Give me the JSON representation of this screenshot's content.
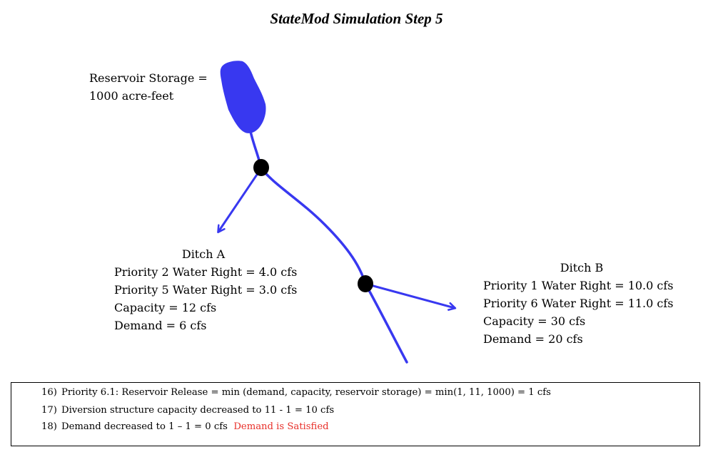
{
  "title": "StateMod Simulation Step 5",
  "colors": {
    "river": "#3838f0",
    "node": "#000000",
    "satisfied": "#e8302a"
  },
  "reservoir": {
    "lines": [
      "Reservoir Storage =",
      "1000 acre-feet"
    ]
  },
  "ditch_a": {
    "name": "Ditch A",
    "lines": [
      "Priority 2 Water Right = 4.0 cfs",
      "Priority 5 Water Right = 3.0 cfs",
      "Capacity = 12 cfs",
      "Demand = 6 cfs"
    ]
  },
  "ditch_b": {
    "name": "Ditch B",
    "lines": [
      "Priority 1 Water Right = 10.0 cfs",
      "Priority 6 Water Right = 11.0 cfs",
      "Capacity = 30 cfs",
      "Demand = 20 cfs"
    ]
  },
  "notes": [
    {
      "num": "16)",
      "text": "Priority 6.1: Reservoir Release = min (demand, capacity, reservoir storage) = min(1, 11, 1000) = 1 cfs",
      "status": ""
    },
    {
      "num": "17)",
      "text": "Diversion structure capacity decreased to 11 - 1 = 10 cfs",
      "status": ""
    },
    {
      "num": "18)",
      "text": "Demand decreased to 1 – 1 = 0 cfs",
      "status": "Demand is Satisfied"
    }
  ]
}
